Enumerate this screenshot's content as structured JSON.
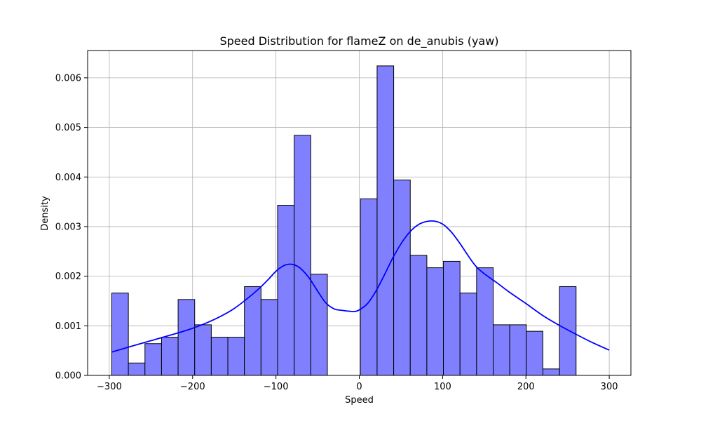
{
  "chart_data": {
    "type": "histogram",
    "title": "Speed Distribution for flameZ on de_anubis (yaw)",
    "xlabel": "Speed",
    "ylabel": "Density",
    "xlim": [
      -326,
      326
    ],
    "ylim": [
      0,
      0.00655
    ],
    "grid": true,
    "bar_color": "#8080ff",
    "bar_edge_color": "#000000",
    "kde_color": "#0000ff",
    "x_ticks": [
      {
        "value": -300,
        "label": "−300"
      },
      {
        "value": -200,
        "label": "−200"
      },
      {
        "value": -100,
        "label": "−100"
      },
      {
        "value": 0,
        "label": "0"
      },
      {
        "value": 100,
        "label": "100"
      },
      {
        "value": 200,
        "label": "200"
      },
      {
        "value": 300,
        "label": "300"
      }
    ],
    "y_ticks": [
      {
        "value": 0,
        "label": "0.000"
      },
      {
        "value": 0.001,
        "label": "0.001"
      },
      {
        "value": 0.002,
        "label": "0.002"
      },
      {
        "value": 0.003,
        "label": "0.003"
      },
      {
        "value": 0.004,
        "label": "0.004"
      },
      {
        "value": 0.005,
        "label": "0.005"
      },
      {
        "value": 0.006,
        "label": "0.006"
      }
    ],
    "bins": {
      "start": -297,
      "width": 19.9,
      "densities": [
        0.00166,
        0.00025,
        0.00064,
        0.00077,
        0.00153,
        0.00102,
        0.00077,
        0.00077,
        0.00179,
        0.00153,
        0.00343,
        0.00484,
        0.00204,
        0,
        0,
        0.00356,
        0.00624,
        0.00394,
        0.00242,
        0.00217,
        0.0023,
        0.00166,
        0.00217,
        0.00102,
        0.00102,
        0.00089,
        0.00013,
        0.00179
      ]
    },
    "kde": {
      "x": [
        -297,
        -275,
        -250,
        -225,
        -200,
        -175,
        -150,
        -125,
        -110,
        -100,
        -92,
        -85,
        -78,
        -70,
        -60,
        -50,
        -40,
        -30,
        -20,
        -10,
        -5,
        0,
        10,
        20,
        30,
        40,
        50,
        60,
        70,
        80,
        90,
        100,
        110,
        120,
        130,
        140,
        150,
        165,
        180,
        200,
        220,
        240,
        260,
        280,
        300
      ],
      "y": [
        0.00047,
        0.00058,
        0.0007,
        0.00082,
        0.00095,
        0.00112,
        0.00135,
        0.00168,
        0.00192,
        0.0021,
        0.0022,
        0.00224,
        0.00223,
        0.00215,
        0.00196,
        0.0017,
        0.00146,
        0.00134,
        0.00131,
        0.00129,
        0.00129,
        0.00132,
        0.00145,
        0.0017,
        0.00202,
        0.00236,
        0.00265,
        0.00288,
        0.00303,
        0.0031,
        0.00311,
        0.00305,
        0.0029,
        0.00268,
        0.00243,
        0.0022,
        0.00205,
        0.00187,
        0.00168,
        0.00145,
        0.00121,
        0.00101,
        0.00083,
        0.00066,
        0.00051
      ]
    }
  }
}
